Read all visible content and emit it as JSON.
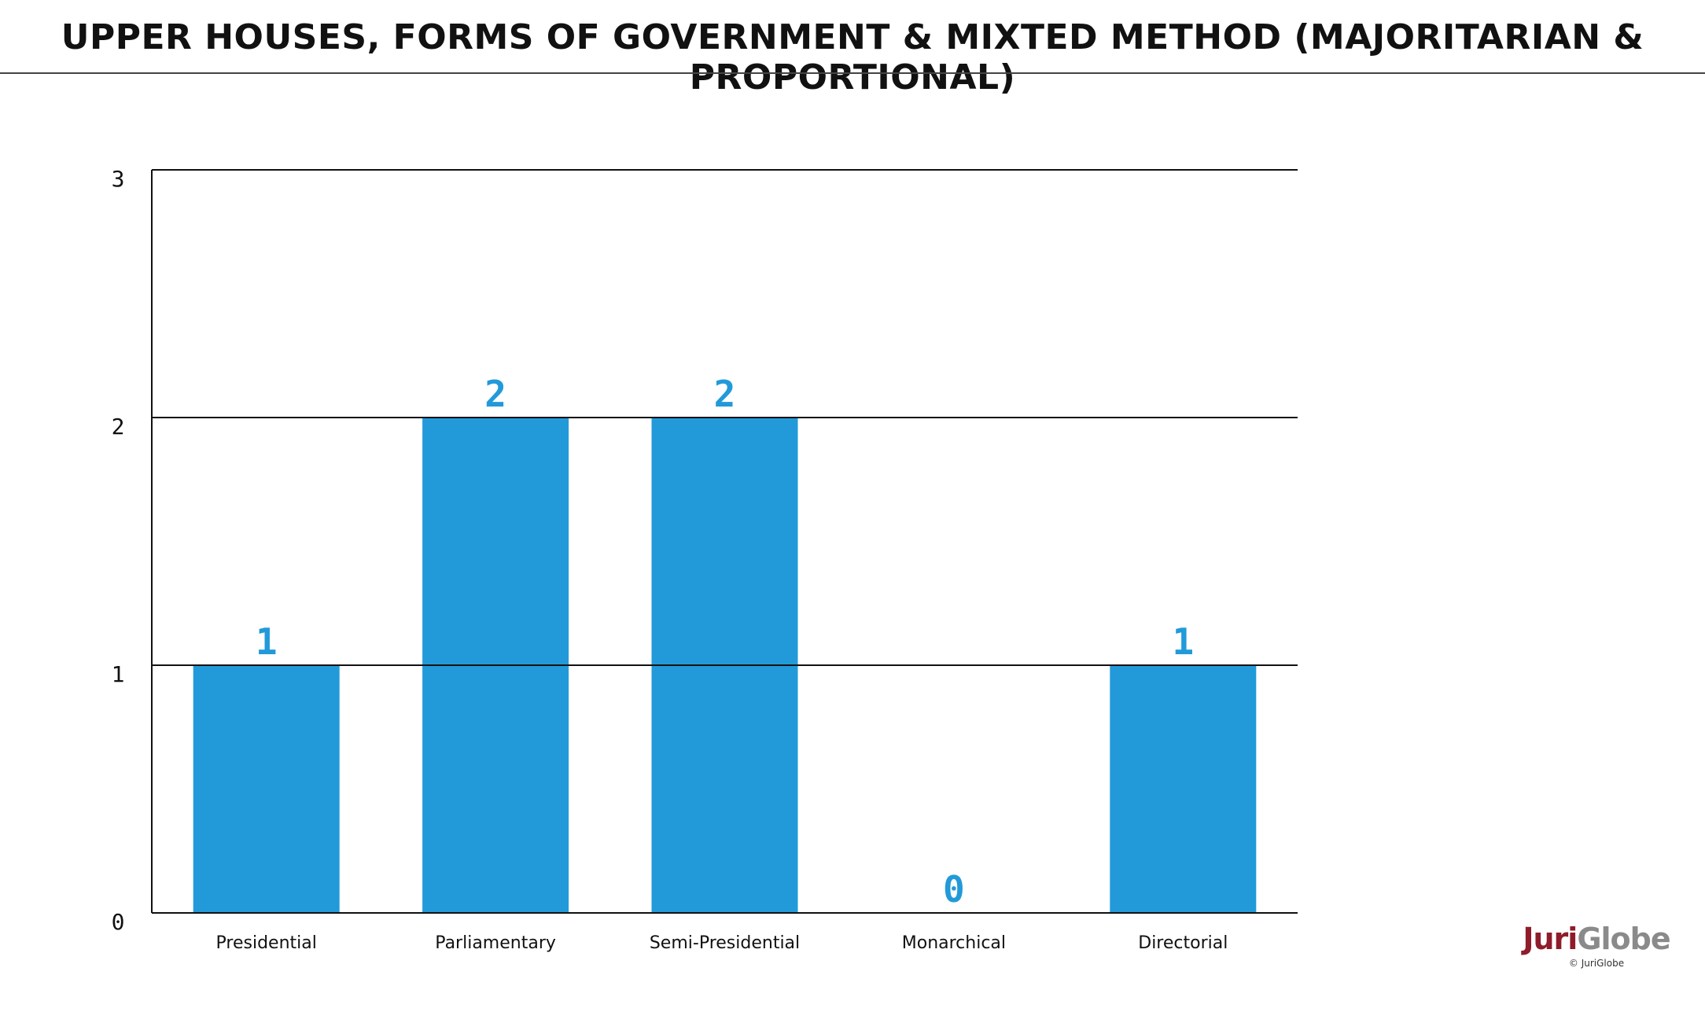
{
  "title": "UPPER HOUSES, FORMS OF GOVERNMENT & MIXTED METHOD (MAJORITARIAN & PROPORTIONAL)",
  "chart_data": {
    "type": "bar",
    "categories": [
      "Presidential",
      "Parliamentary",
      "Semi-Presidential",
      "Monarchical",
      "Directorial"
    ],
    "values": [
      1,
      2,
      2,
      0,
      1
    ],
    "ylim": [
      0,
      3
    ],
    "yticks": [
      "0",
      "1",
      "2",
      "3"
    ],
    "grid": true,
    "bar_color": "#229ad9",
    "label_color": "#229ad9"
  },
  "logo": {
    "name_part1": "Juri",
    "name_part2": "Globe",
    "copyright": "© JuriGlobe"
  }
}
